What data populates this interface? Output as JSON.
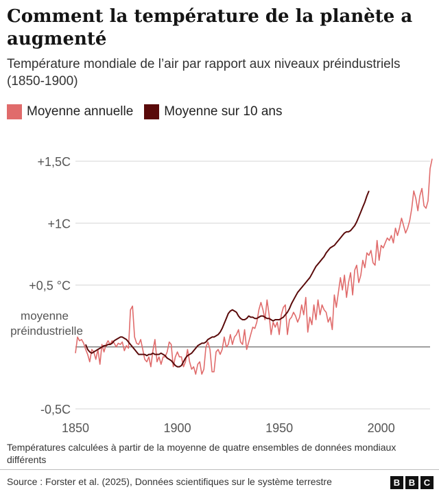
{
  "title": "Comment la température de la planète a augmenté",
  "subtitle": "Température mondiale de l’air par rapport aux niveaux préindustriels (1850-1900)",
  "legend": {
    "annual": "Moyenne annuelle",
    "decadal": "Moyenne sur 10 ans"
  },
  "baseline_label_line1": "moyenne",
  "baseline_label_line2": "préindustrielle",
  "footnote": "Températures calculées à partir de la moyenne de quatre ensembles de données mondiaux différents",
  "source": "Source : Forster et al. (2025), Données scientifiques sur le système terrestre",
  "logo_letters": [
    "B",
    "B",
    "C"
  ],
  "colors": {
    "annual": "#e06b6b",
    "decadal": "#5a0a0a",
    "grid": "#d6d6d6",
    "baseline": "#444444",
    "axis_text": "#555555"
  },
  "chart_data": {
    "type": "line",
    "title": "Comment la température de la planète a augmenté",
    "subtitle": "Température mondiale de l’air par rapport aux niveaux préindustriels (1850-1900)",
    "xlabel": "",
    "ylabel": "",
    "xlim": [
      1850,
      2024
    ],
    "ylim": [
      -0.5,
      1.5
    ],
    "grid": true,
    "legend_position": "top-left",
    "x_ticks": [
      1850,
      1900,
      1950,
      2000
    ],
    "y_ticks": [
      {
        "value": 1.5,
        "label": "+1,5C"
      },
      {
        "value": 1.0,
        "label": "+1C"
      },
      {
        "value": 0.5,
        "label": "+0,5 °C"
      },
      {
        "value": -0.5,
        "label": "-0,5C"
      }
    ],
    "series": [
      {
        "name": "Moyenne annuelle",
        "x_start": 1850,
        "values": [
          -0.05,
          0.08,
          0.05,
          0.06,
          0.03,
          -0.02,
          -0.06,
          -0.12,
          -0.02,
          -0.04,
          -0.1,
          -0.02,
          -0.14,
          0.02,
          -0.04,
          0.02,
          0.05,
          0.02,
          0.05,
          0.03,
          0.0,
          0.03,
          0.02,
          0.04,
          -0.03,
          0.01,
          -0.01,
          0.3,
          0.33,
          0.08,
          0.03,
          0.02,
          0.06,
          -0.02,
          -0.1,
          -0.12,
          -0.08,
          -0.16,
          -0.03,
          0.06,
          -0.12,
          -0.08,
          -0.14,
          -0.08,
          -0.08,
          -0.04,
          0.04,
          0.02,
          -0.16,
          -0.08,
          -0.04,
          -0.08,
          -0.08,
          -0.16,
          -0.12,
          -0.02,
          -0.12,
          -0.18,
          -0.16,
          -0.22,
          -0.14,
          -0.12,
          -0.22,
          -0.18,
          0.0,
          0.04,
          -0.02,
          -0.2,
          -0.2,
          -0.04,
          -0.02,
          -0.06,
          -0.02,
          0.08,
          0.0,
          0.02,
          0.1,
          0.02,
          0.08,
          0.1,
          0.14,
          0.04,
          0.02,
          0.14,
          -0.02,
          0.04,
          0.1,
          0.16,
          0.15,
          0.2,
          0.3,
          0.36,
          0.3,
          0.22,
          0.38,
          0.26,
          0.1,
          0.2,
          0.16,
          0.2,
          0.1,
          0.26,
          0.32,
          0.34,
          0.1,
          0.22,
          0.24,
          0.28,
          0.25,
          0.2,
          0.24,
          0.34,
          0.26,
          0.4,
          0.12,
          0.24,
          0.18,
          0.34,
          0.22,
          0.38,
          0.26,
          0.34,
          0.3,
          0.28,
          0.2,
          0.24,
          0.14,
          0.42,
          0.32,
          0.44,
          0.56,
          0.46,
          0.58,
          0.4,
          0.52,
          0.6,
          0.42,
          0.62,
          0.66,
          0.52,
          0.58,
          0.7,
          0.64,
          0.76,
          0.74,
          0.78,
          0.68,
          0.66,
          0.86,
          0.7,
          0.82,
          0.8,
          0.84,
          0.88,
          0.86,
          0.9,
          0.84,
          0.96,
          0.9,
          0.96,
          1.04,
          0.98,
          0.92,
          0.96,
          1.02,
          1.12,
          1.26,
          1.2,
          1.1,
          1.22,
          1.28,
          1.14,
          1.12,
          1.18,
          1.44,
          1.52
        ]
      },
      {
        "name": "Moyenne sur 10 ans",
        "x_start": 1855,
        "values": [
          0.02,
          -0.02,
          -0.04,
          -0.05,
          -0.04,
          -0.03,
          -0.02,
          -0.01,
          0.0,
          0.01,
          0.01,
          0.02,
          0.02,
          0.03,
          0.05,
          0.06,
          0.07,
          0.08,
          0.08,
          0.07,
          0.06,
          0.04,
          0.02,
          0.0,
          -0.02,
          -0.04,
          -0.06,
          -0.06,
          -0.06,
          -0.06,
          -0.07,
          -0.06,
          -0.06,
          -0.05,
          -0.06,
          -0.06,
          -0.06,
          -0.05,
          -0.06,
          -0.07,
          -0.09,
          -0.1,
          -0.11,
          -0.13,
          -0.15,
          -0.16,
          -0.16,
          -0.15,
          -0.12,
          -0.09,
          -0.07,
          -0.06,
          -0.05,
          -0.03,
          -0.01,
          0.01,
          0.02,
          0.03,
          0.03,
          0.04,
          0.06,
          0.07,
          0.08,
          0.08,
          0.09,
          0.1,
          0.12,
          0.15,
          0.19,
          0.23,
          0.27,
          0.29,
          0.3,
          0.29,
          0.28,
          0.25,
          0.23,
          0.22,
          0.22,
          0.23,
          0.25,
          0.24,
          0.24,
          0.23,
          0.23,
          0.24,
          0.25,
          0.25,
          0.24,
          0.23,
          0.23,
          0.22,
          0.21,
          0.22,
          0.22,
          0.22,
          0.23,
          0.24,
          0.26,
          0.28,
          0.31,
          0.35,
          0.38,
          0.41,
          0.44,
          0.46,
          0.48,
          0.5,
          0.52,
          0.54,
          0.56,
          0.59,
          0.62,
          0.65,
          0.67,
          0.69,
          0.71,
          0.73,
          0.76,
          0.78,
          0.8,
          0.81,
          0.82,
          0.84,
          0.86,
          0.88,
          0.9,
          0.92,
          0.93,
          0.93,
          0.94,
          0.96,
          0.98,
          1.01,
          1.05,
          1.09,
          1.13,
          1.17,
          1.22,
          1.26
        ]
      }
    ]
  }
}
